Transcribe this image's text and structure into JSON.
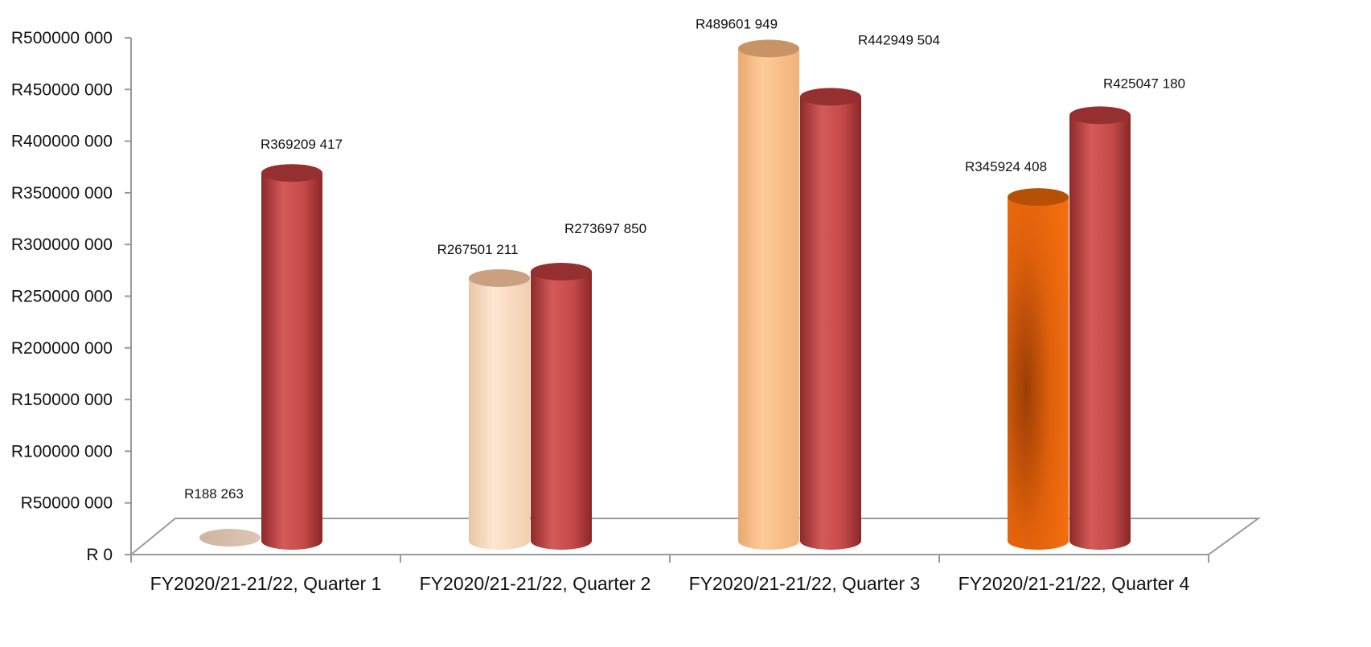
{
  "chart_data": {
    "type": "bar",
    "title": "",
    "xlabel": "",
    "ylabel": "",
    "ylim": [
      0,
      500000000
    ],
    "yticks": [
      {
        "value": 0,
        "label": "R 0"
      },
      {
        "value": 50000000,
        "label": "R50000 000"
      },
      {
        "value": 100000000,
        "label": "R100000 000"
      },
      {
        "value": 150000000,
        "label": "R150000 000"
      },
      {
        "value": 200000000,
        "label": "R200000 000"
      },
      {
        "value": 250000000,
        "label": "R250000 000"
      },
      {
        "value": 300000000,
        "label": "R300000 000"
      },
      {
        "value": 350000000,
        "label": "R350000 000"
      },
      {
        "value": 400000000,
        "label": "R400000 000"
      },
      {
        "value": 450000000,
        "label": "R450000 000"
      },
      {
        "value": 500000000,
        "label": "R500000 000"
      }
    ],
    "categories": [
      "FY2020/21-21/22, Quarter 1",
      "FY2020/21-21/22, Quarter 2",
      "FY2020/21-21/22, Quarter 3",
      "FY2020/21-21/22, Quarter 4"
    ],
    "series": [
      {
        "values": [
          188263,
          267501211,
          489601949,
          345924408
        ],
        "labels": [
          "R188 263",
          "R267501 211",
          "R489601 949",
          "R345924 408"
        ],
        "colors": [
          "#d7c2b0",
          "#fde0c4",
          "#fdc690",
          "#ea6a0a"
        ]
      },
      {
        "values": [
          369209417,
          273697850,
          442949504,
          425047180
        ],
        "labels": [
          "R369209 417",
          "R273697 850",
          "R442949 504",
          "R425047 180"
        ],
        "colors": [
          "#c84f4f",
          "#c84f4f",
          "#c84f4f",
          "#c84f4f"
        ]
      }
    ],
    "grid": false,
    "legend": "none",
    "style": "3d-cylinder"
  }
}
